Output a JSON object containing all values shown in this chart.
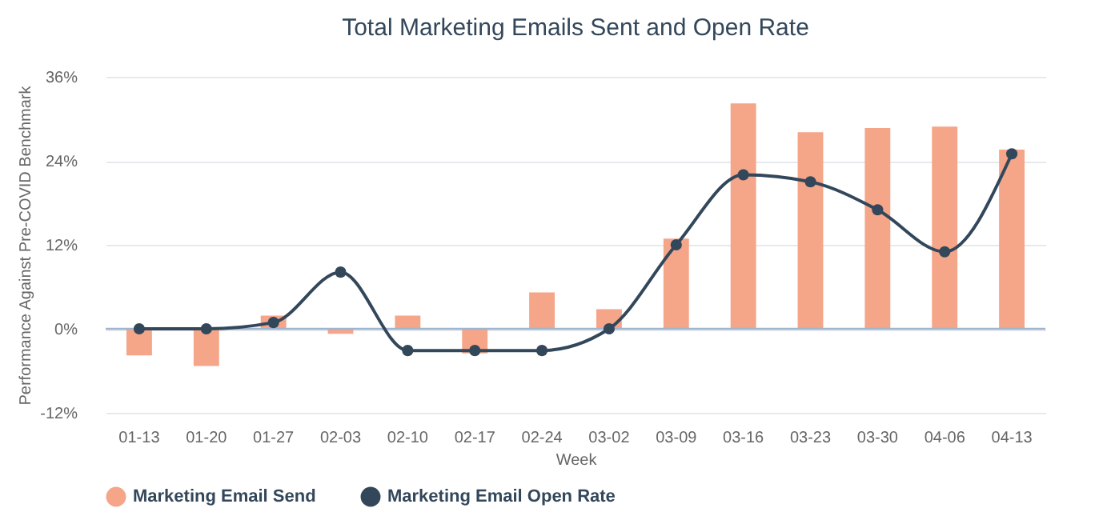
{
  "chart_data": {
    "type": "bar",
    "title": "Total Marketing Emails Sent and Open Rate",
    "xlabel": "Week",
    "ylabel": "Performance Against Pre-COVID Benchmark",
    "categories": [
      "01-13",
      "01-20",
      "01-27",
      "02-03",
      "02-10",
      "02-17",
      "02-24",
      "03-02",
      "03-09",
      "03-16",
      "03-23",
      "03-30",
      "04-06",
      "04-13"
    ],
    "series": [
      {
        "name": "Marketing Email Send",
        "color": "#f5a588",
        "values": [
          -3.8,
          -5.3,
          1.9,
          -0.7,
          1.9,
          -3.5,
          5.2,
          2.8,
          12.9,
          32.2,
          28.1,
          28.7,
          28.9,
          25.6
        ]
      },
      {
        "name": "Marketing Email Open Rate",
        "type": "line",
        "color": "#33475b",
        "marker": "circle",
        "values": [
          0,
          0,
          0.9,
          8.1,
          -3.1,
          -3.1,
          -3.1,
          0,
          12,
          22,
          21,
          17,
          11,
          25
        ]
      }
    ],
    "ylim": [
      -12,
      36
    ],
    "yticks": [
      {
        "value": -12,
        "label": "-12%"
      },
      {
        "value": 0,
        "label": "0%"
      },
      {
        "value": 12,
        "label": "12%"
      },
      {
        "value": 24,
        "label": "24%"
      },
      {
        "value": 36,
        "label": "36%"
      }
    ],
    "ref_lines": [
      {
        "axis": "y",
        "value": 0,
        "color": "#9fb5d0"
      }
    ],
    "grid": "y",
    "legend": "bottom"
  }
}
